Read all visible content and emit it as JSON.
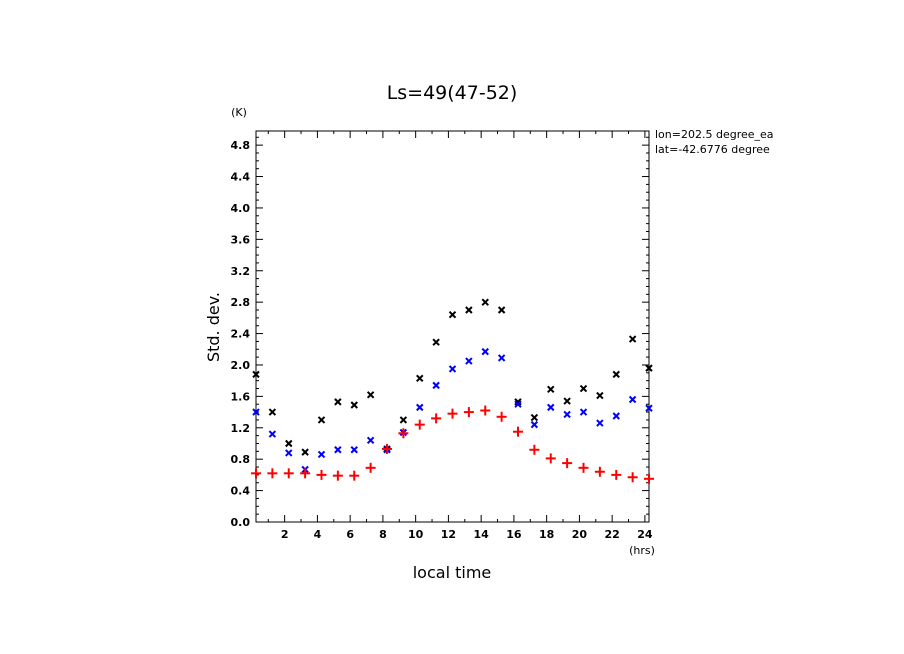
{
  "chart_data": {
    "type": "scatter",
    "title": "Ls=49(47-52)",
    "xlabel": "local time",
    "ylabel": "Std. dev.",
    "x_unit": "(hrs)",
    "y_unit": "(K)",
    "xlim": [
      0.25,
      24.25
    ],
    "ylim": [
      0.0,
      4.98
    ],
    "xticks": [
      2,
      4,
      6,
      8,
      10,
      12,
      14,
      16,
      18,
      20,
      22,
      24
    ],
    "yticks": [
      0.0,
      0.4,
      0.8,
      1.2,
      1.6,
      2.0,
      2.4,
      2.8,
      3.2,
      3.6,
      4.0,
      4.4,
      4.8
    ],
    "annotations": [
      "lon=202.5 degree_ea",
      "lat=-42.6776 degree"
    ],
    "grid": false,
    "series": [
      {
        "marker": "x",
        "color": "#000000",
        "x": [
          0.25,
          1.25,
          2.25,
          3.25,
          4.25,
          5.25,
          6.25,
          7.25,
          8.25,
          9.25,
          10.25,
          11.25,
          12.25,
          13.25,
          14.25,
          15.25,
          16.25,
          17.25,
          18.25,
          19.25,
          20.25,
          21.25,
          22.25,
          23.25,
          24.25
        ],
        "y": [
          1.88,
          1.4,
          1.0,
          0.89,
          1.3,
          1.53,
          1.49,
          1.62,
          0.93,
          1.3,
          1.83,
          2.29,
          2.64,
          2.7,
          2.8,
          2.7,
          1.53,
          1.33,
          1.69,
          1.54,
          1.7,
          1.61,
          1.88,
          2.33,
          1.96
        ]
      },
      {
        "marker": "x",
        "color": "#0000ff",
        "x": [
          0.25,
          1.25,
          2.25,
          3.25,
          4.25,
          5.25,
          6.25,
          7.25,
          8.25,
          9.25,
          10.25,
          11.25,
          12.25,
          13.25,
          14.25,
          15.25,
          16.25,
          17.25,
          18.25,
          19.25,
          20.25,
          21.25,
          22.25,
          23.25,
          24.25
        ],
        "y": [
          1.4,
          1.12,
          0.88,
          0.67,
          0.86,
          0.92,
          0.92,
          1.04,
          0.92,
          1.14,
          1.46,
          1.74,
          1.95,
          2.05,
          2.17,
          2.09,
          1.5,
          1.24,
          1.46,
          1.37,
          1.4,
          1.26,
          1.35,
          1.56,
          1.45
        ]
      },
      {
        "marker": "+",
        "color": "#ff0000",
        "x": [
          0.25,
          1.25,
          2.25,
          3.25,
          4.25,
          5.25,
          6.25,
          7.25,
          8.25,
          9.25,
          10.25,
          11.25,
          12.25,
          13.25,
          14.25,
          15.25,
          16.25,
          17.25,
          18.25,
          19.25,
          20.25,
          21.25,
          22.25,
          23.25,
          24.25
        ],
        "y": [
          0.62,
          0.62,
          0.62,
          0.62,
          0.6,
          0.59,
          0.59,
          0.69,
          0.93,
          1.13,
          1.24,
          1.32,
          1.38,
          1.4,
          1.42,
          1.34,
          1.15,
          0.92,
          0.81,
          0.75,
          0.69,
          0.64,
          0.6,
          0.57,
          0.55
        ]
      }
    ]
  }
}
